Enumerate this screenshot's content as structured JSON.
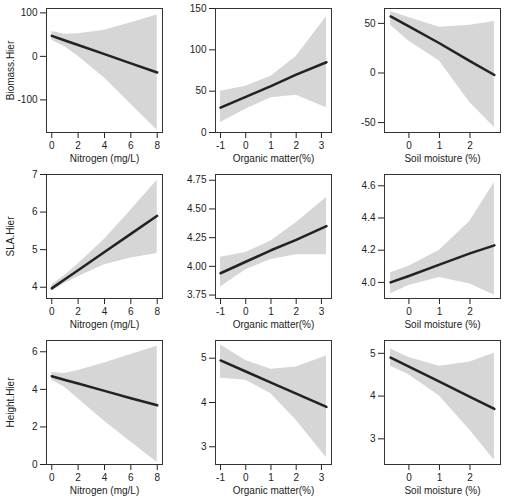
{
  "chart_data": [
    {
      "type": "line",
      "x_label": "Nitrogen (mg/L)",
      "y_label": "Biomass.Hier",
      "color": "#222222",
      "x": [
        0,
        1,
        2,
        4,
        6,
        8
      ],
      "values": [
        47,
        36.5,
        26,
        5,
        -16,
        -37
      ],
      "ci_lower": [
        37,
        22,
        0,
        -50,
        -110,
        -170
      ],
      "ci_upper": [
        57,
        51,
        52,
        60,
        77,
        95
      ],
      "xlim": [
        -0.4,
        8.4
      ],
      "ylim": [
        -175,
        110
      ],
      "xticks": [
        0,
        2,
        4,
        6,
        8
      ],
      "yticks": [
        -100,
        0,
        100
      ]
    },
    {
      "type": "line",
      "x_label": "Organic matter(%)",
      "color": "#222222",
      "x": [
        -1,
        0,
        1,
        2,
        3.2
      ],
      "values": [
        30,
        43,
        56,
        70,
        85
      ],
      "ci_lower": [
        12,
        28,
        42,
        45,
        30
      ],
      "ci_upper": [
        50,
        56,
        68,
        92,
        140
      ],
      "xlim": [
        -1.2,
        3.4
      ],
      "ylim": [
        0,
        150
      ],
      "xticks": [
        -1,
        0,
        1,
        2,
        3
      ],
      "yticks": [
        0,
        50,
        100,
        150
      ]
    },
    {
      "type": "line",
      "x_label": "Soil moisture (%)",
      "color": "#222222",
      "x": [
        -0.6,
        0,
        1,
        2,
        2.8
      ],
      "values": [
        57,
        47,
        30,
        12,
        -2
      ],
      "ci_lower": [
        48,
        32,
        12,
        -30,
        -55
      ],
      "ci_upper": [
        62,
        56,
        46,
        48,
        52
      ],
      "xlim": [
        -0.8,
        3.0
      ],
      "ylim": [
        -60,
        65
      ],
      "xticks": [
        0,
        1,
        2
      ],
      "yticks": [
        -50,
        0,
        50
      ]
    },
    {
      "type": "line",
      "x_label": "Nitrogen (mg/L)",
      "y_label": "SLA.Hier",
      "color": "#222222",
      "x": [
        0,
        1,
        2,
        4,
        6,
        8
      ],
      "values": [
        3.97,
        4.21,
        4.45,
        4.94,
        5.42,
        5.9
      ],
      "ci_lower": [
        3.9,
        4.1,
        4.28,
        4.6,
        4.78,
        4.9
      ],
      "ci_upper": [
        4.05,
        4.32,
        4.62,
        5.28,
        6.05,
        6.85
      ],
      "xlim": [
        -0.4,
        8.4
      ],
      "ylim": [
        3.7,
        7.0
      ],
      "xticks": [
        0,
        2,
        4,
        6,
        8
      ],
      "yticks": [
        4,
        5,
        6,
        7
      ]
    },
    {
      "type": "line",
      "x_label": "Organic matter(%)",
      "color": "#222222",
      "x": [
        -1,
        0,
        1,
        2,
        3.2
      ],
      "values": [
        3.94,
        4.04,
        4.14,
        4.23,
        4.35
      ],
      "ci_lower": [
        3.82,
        3.97,
        4.06,
        4.1,
        4.1
      ],
      "ci_upper": [
        4.08,
        4.12,
        4.22,
        4.38,
        4.6
      ],
      "xlim": [
        -1.2,
        3.4
      ],
      "ylim": [
        3.72,
        4.8
      ],
      "xticks": [
        -1,
        0,
        1,
        2,
        3
      ],
      "yticks": [
        3.75,
        {
          "value": 4,
          "label": "4.00"
        },
        4.25,
        {
          "value": 4.5,
          "label": "4.50"
        },
        4.75
      ]
    },
    {
      "type": "line",
      "x_label": "Soil moisture (%)",
      "color": "#222222",
      "x": [
        -0.6,
        0,
        1,
        2,
        2.8
      ],
      "values": [
        4.0,
        4.04,
        4.11,
        4.18,
        4.23
      ],
      "ci_lower": [
        3.93,
        3.98,
        4.03,
        3.99,
        3.92
      ],
      "ci_upper": [
        4.06,
        4.1,
        4.2,
        4.38,
        4.62
      ],
      "xlim": [
        -0.8,
        3.0
      ],
      "ylim": [
        3.9,
        4.67
      ],
      "xticks": [
        0,
        1,
        2
      ],
      "yticks": [
        {
          "value": 4,
          "label": "4.0"
        },
        4.2,
        4.4,
        4.6
      ]
    },
    {
      "type": "line",
      "x_label": "Nitrogen (mg/L)",
      "y_label": "Height.Hier",
      "color": "#222222",
      "x": [
        0,
        1,
        2,
        4,
        6,
        8
      ],
      "values": [
        4.7,
        4.5,
        4.31,
        3.92,
        3.53,
        3.15
      ],
      "ci_lower": [
        4.5,
        4.1,
        3.5,
        2.3,
        1.2,
        0.1
      ],
      "ci_upper": [
        4.9,
        4.85,
        5.0,
        5.4,
        5.85,
        6.3
      ],
      "xlim": [
        -0.4,
        8.4
      ],
      "ylim": [
        0,
        6.6
      ],
      "xticks": [
        0,
        2,
        4,
        6,
        8
      ],
      "yticks": [
        0,
        2,
        4,
        6
      ]
    },
    {
      "type": "line",
      "x_label": "Organic matter(%)",
      "color": "#222222",
      "x": [
        -1,
        0,
        1,
        2,
        3.2
      ],
      "values": [
        4.95,
        4.7,
        4.45,
        4.2,
        3.9
      ],
      "ci_lower": [
        4.55,
        4.5,
        4.2,
        3.6,
        2.75
      ],
      "ci_upper": [
        5.3,
        4.95,
        4.75,
        4.8,
        5.05
      ],
      "xlim": [
        -1.2,
        3.4
      ],
      "ylim": [
        2.6,
        5.4
      ],
      "xticks": [
        -1,
        0,
        1,
        2,
        3
      ],
      "yticks": [
        3,
        4,
        5
      ]
    },
    {
      "type": "line",
      "x_label": "Soil moisture (%)",
      "color": "#222222",
      "x": [
        -0.6,
        0,
        1,
        2,
        2.8
      ],
      "values": [
        4.9,
        4.69,
        4.34,
        3.98,
        3.7
      ],
      "ci_lower": [
        4.7,
        4.5,
        4.0,
        3.2,
        2.5
      ],
      "ci_upper": [
        5.1,
        4.9,
        4.7,
        4.8,
        5.0
      ],
      "xlim": [
        -0.8,
        3.0
      ],
      "ylim": [
        2.4,
        5.3
      ],
      "xticks": [
        0,
        1,
        2
      ],
      "yticks": [
        3,
        4,
        5
      ]
    }
  ]
}
